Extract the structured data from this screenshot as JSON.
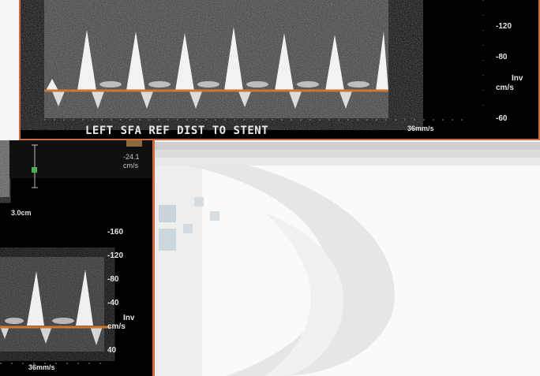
{
  "top_panel": {
    "label": "LEFT   SFA  REF  DIST  TO   STENT",
    "scale_ticks": [
      "-120",
      "-80",
      "Inv",
      "cm/s",
      "-60"
    ],
    "sweep_speed": "36mm/s"
  },
  "bottom_panel": {
    "velocity_readout": "-24.1",
    "velocity_unit": "cm/s",
    "depth_label": "3.0cm",
    "scale_ticks": [
      "-160",
      "-120",
      "-80",
      "-40",
      "Inv",
      "cm/s",
      "40"
    ],
    "sweep_speed": "36mm/s"
  },
  "colors": {
    "panel_border": "#d06a3c",
    "baseline": "#c9782e",
    "background": "#000000",
    "marker": "#4caf50"
  }
}
